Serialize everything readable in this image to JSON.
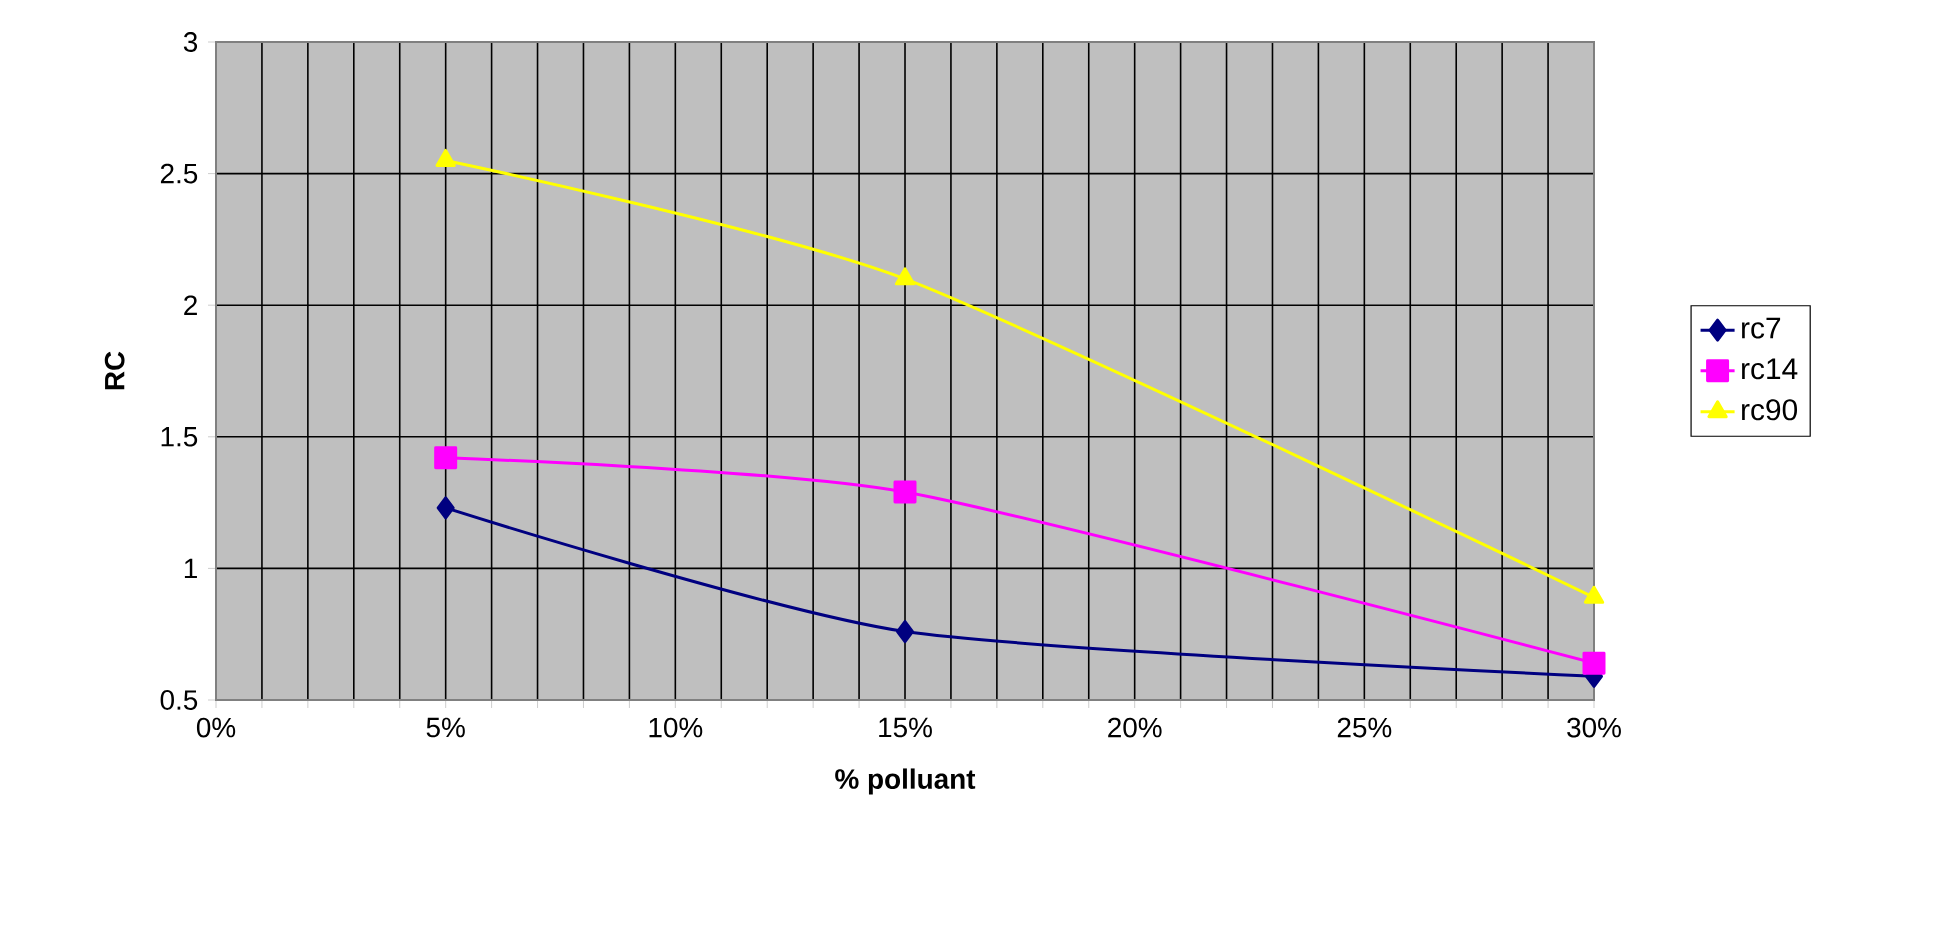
{
  "chart_data": {
    "type": "line",
    "xlabel": "% polluant",
    "ylabel": "RC",
    "xlim": [
      0,
      30
    ],
    "ylim": [
      0.5,
      3
    ],
    "xticks": [
      {
        "value": 0,
        "label": "0%"
      },
      {
        "value": 1,
        "label": null
      },
      {
        "value": 2,
        "label": null
      },
      {
        "value": 3,
        "label": null
      },
      {
        "value": 4,
        "label": null
      },
      {
        "value": 5,
        "label": "5%"
      },
      {
        "value": 6,
        "label": null
      },
      {
        "value": 7,
        "label": null
      },
      {
        "value": 8,
        "label": null
      },
      {
        "value": 9,
        "label": null
      },
      {
        "value": 10,
        "label": "10%"
      },
      {
        "value": 11,
        "label": null
      },
      {
        "value": 12,
        "label": null
      },
      {
        "value": 13,
        "label": null
      },
      {
        "value": 14,
        "label": null
      },
      {
        "value": 15,
        "label": "15%"
      },
      {
        "value": 16,
        "label": null
      },
      {
        "value": 17,
        "label": null
      },
      {
        "value": 18,
        "label": null
      },
      {
        "value": 19,
        "label": null
      },
      {
        "value": 20,
        "label": "20%"
      },
      {
        "value": 21,
        "label": null
      },
      {
        "value": 22,
        "label": null
      },
      {
        "value": 23,
        "label": null
      },
      {
        "value": 24,
        "label": null
      },
      {
        "value": 25,
        "label": "25%"
      },
      {
        "value": 26,
        "label": null
      },
      {
        "value": 27,
        "label": null
      },
      {
        "value": 28,
        "label": null
      },
      {
        "value": 29,
        "label": null
      },
      {
        "value": 30,
        "label": "30%"
      }
    ],
    "yticks": [
      0.5,
      1,
      1.5,
      2,
      2.5,
      3
    ],
    "x": [
      5,
      15,
      30
    ],
    "grid": true,
    "legend": "right",
    "series": [
      {
        "name": "rc7",
        "color": "#000080",
        "marker": "diamond",
        "values": [
          1.23,
          0.76,
          0.59
        ]
      },
      {
        "name": "rc14",
        "color": "#ff00ff",
        "marker": "square",
        "values": [
          1.42,
          1.29,
          0.64
        ]
      },
      {
        "name": "rc90",
        "color": "#ffff00",
        "marker": "triangle",
        "values": [
          2.55,
          2.1,
          0.89
        ]
      }
    ]
  }
}
